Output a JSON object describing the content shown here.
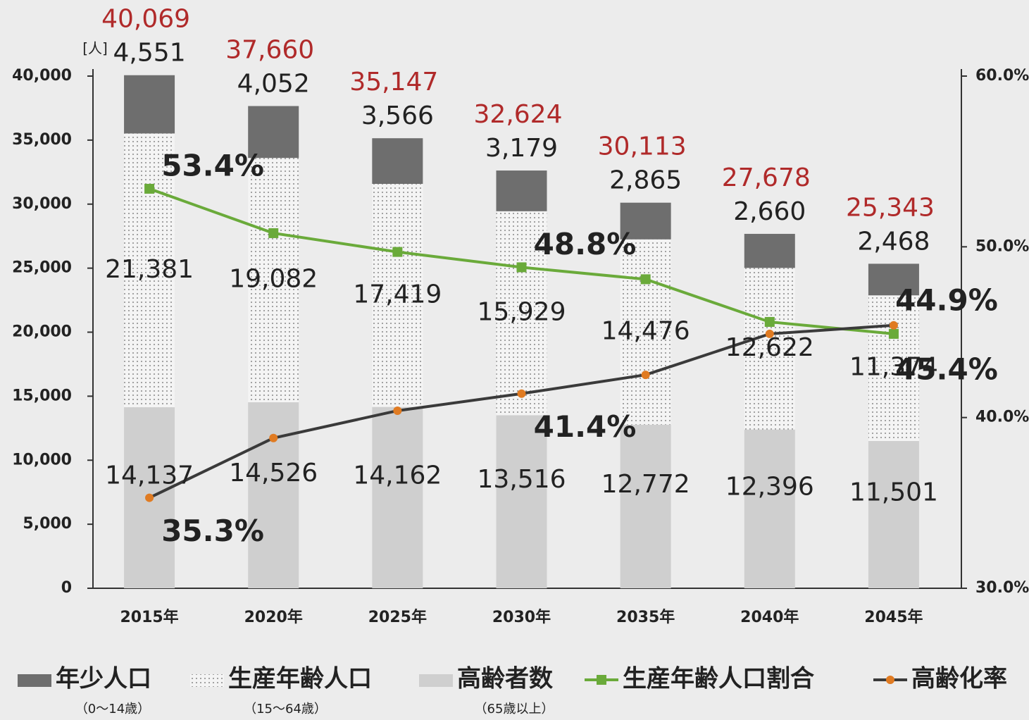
{
  "chart_data": {
    "type": "stacked-bar-line",
    "unit_label": "[人]",
    "categories": [
      "2015年",
      "2020年",
      "2025年",
      "2030年",
      "2035年",
      "2040年",
      "2045年"
    ],
    "series": [
      {
        "name": "高齢者数",
        "note": "（65歳以上）",
        "kind": "bar",
        "color": "#cfcfcf",
        "values": [
          14137,
          14526,
          14162,
          13516,
          12772,
          12396,
          11501
        ],
        "value_labels": [
          "14,137",
          "14,526",
          "14,162",
          "13,516",
          "12,772",
          "12,396",
          "11,501"
        ]
      },
      {
        "name": "生産年齢人口",
        "note": "（15～64歳）",
        "kind": "bar",
        "color": "#f4f4f4",
        "pattern": "dots",
        "values": [
          21381,
          19082,
          17419,
          15929,
          14476,
          12622,
          11374
        ],
        "value_labels": [
          "21,381",
          "19,082",
          "17,419",
          "15,929",
          "14,476",
          "12,622",
          "11,374"
        ]
      },
      {
        "name": "年少人口",
        "note": "（0～14歳）",
        "kind": "bar",
        "color": "#6e6e6e",
        "values": [
          4551,
          4052,
          3566,
          3179,
          2865,
          2660,
          2468
        ],
        "value_labels": [
          "4,551",
          "4,052",
          "3,566",
          "3,179",
          "2,865",
          "2,660",
          "2,468"
        ]
      },
      {
        "name": "生産年齢人口割合",
        "kind": "line",
        "axis": "y2",
        "color": "#6aaa3a",
        "values": [
          53.4,
          50.8,
          49.7,
          48.8,
          48.1,
          45.6,
          44.9
        ],
        "value_labels": [
          "53.4%",
          null,
          null,
          "48.8%",
          null,
          null,
          "44.9%"
        ]
      },
      {
        "name": "高齢化率",
        "kind": "line",
        "axis": "y2",
        "color": "#3a3a3a",
        "marker_color": "#e07b22",
        "values": [
          35.3,
          38.8,
          40.4,
          41.4,
          42.5,
          44.9,
          45.4
        ],
        "value_labels": [
          "35.3%",
          null,
          null,
          "41.4%",
          null,
          null,
          "45.4%"
        ]
      }
    ],
    "totals": [
      40069,
      37660,
      35147,
      32624,
      30113,
      27678,
      25343
    ],
    "total_labels": [
      "40,069",
      "37,660",
      "35,147",
      "32,624",
      "30,113",
      "27,678",
      "25,343"
    ],
    "total_color": "#b02a2a",
    "ylim": [
      0,
      40000
    ],
    "yticks": [
      0,
      {
        "value": 5000,
        "label": "5,000"
      },
      {
        "value": 10000,
        "label": "10,000"
      },
      {
        "value": 15000,
        "label": "15,000"
      },
      {
        "value": 20000,
        "label": "20,000"
      },
      {
        "value": 25000,
        "label": "25,000"
      },
      {
        "value": 30000,
        "label": "30,000"
      },
      {
        "value": 35000,
        "label": "35,000"
      },
      {
        "value": 40000,
        "label": "40,000"
      }
    ],
    "y2lim": [
      30,
      60
    ],
    "y2ticks": [
      {
        "value": 30,
        "label": "30.0%"
      },
      {
        "value": 40,
        "label": "40.0%"
      },
      {
        "value": 50,
        "label": "50.0%"
      },
      {
        "value": 60,
        "label": "60.0%"
      }
    ]
  }
}
